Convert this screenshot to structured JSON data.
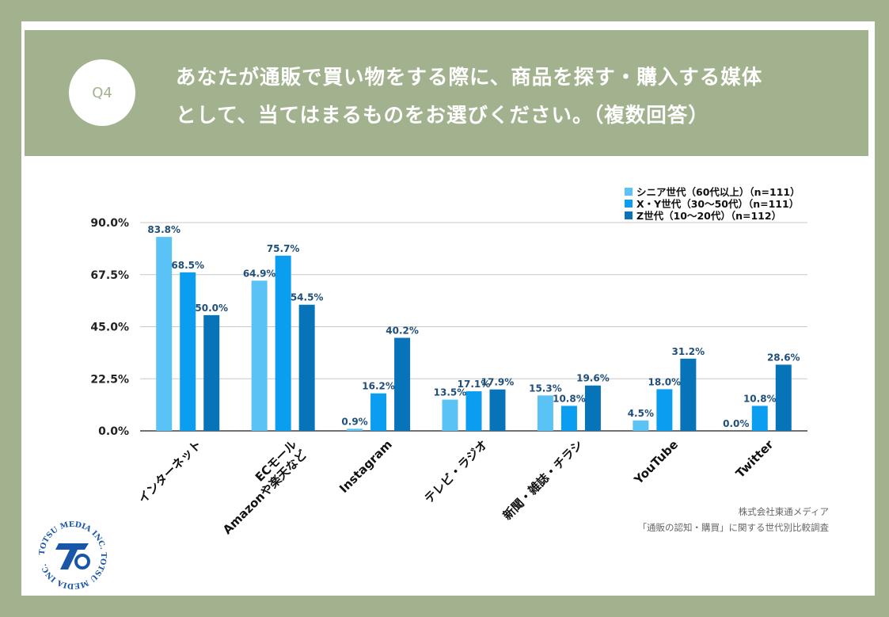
{
  "header": {
    "badge": "Q4",
    "question_line1": "あなたが通販で買い物をする際に、商品を探す・購入する媒体",
    "question_line2": "として、当てはまるものをお選びください。（複数回答）"
  },
  "chart_data": {
    "type": "bar",
    "categories": [
      [
        "インターネット"
      ],
      [
        "ECモール",
        "Amazonや楽天など"
      ],
      [
        "Instagram"
      ],
      [
        "テレビ・ラジオ"
      ],
      [
        "新聞・雑誌・チラシ"
      ],
      [
        "YouTube"
      ],
      [
        "Twitter"
      ]
    ],
    "series": [
      {
        "name": "シニア世代（60代以上）（n=111）",
        "color": "#5bc2f5",
        "values": [
          83.8,
          64.9,
          0.9,
          13.5,
          15.3,
          4.5,
          0.0
        ]
      },
      {
        "name": "X・Y世代（30〜50代）（n=111）",
        "color": "#0a9df0",
        "values": [
          68.5,
          75.7,
          16.2,
          17.1,
          10.8,
          18.0,
          10.8
        ]
      },
      {
        "name": "Z世代（10〜20代）（n=112）",
        "color": "#0773b8",
        "values": [
          50.0,
          54.5,
          40.2,
          17.9,
          19.6,
          31.2,
          28.6
        ]
      }
    ],
    "yticks": [
      0,
      22.5,
      45,
      67.5,
      90
    ],
    "ylim": [
      0,
      90
    ],
    "value_suffix": "%",
    "legend_position": "top-right",
    "label_color": "#1f4e79"
  },
  "credit": {
    "company": "株式会社東通メディア",
    "survey": "「通販の認知・購買」に関する世代別比較調査"
  },
  "logo": {
    "ring_text": "TOTSU MEDIA INC. TOTSU MEDIA INC. ",
    "color": "#1a56a8"
  }
}
